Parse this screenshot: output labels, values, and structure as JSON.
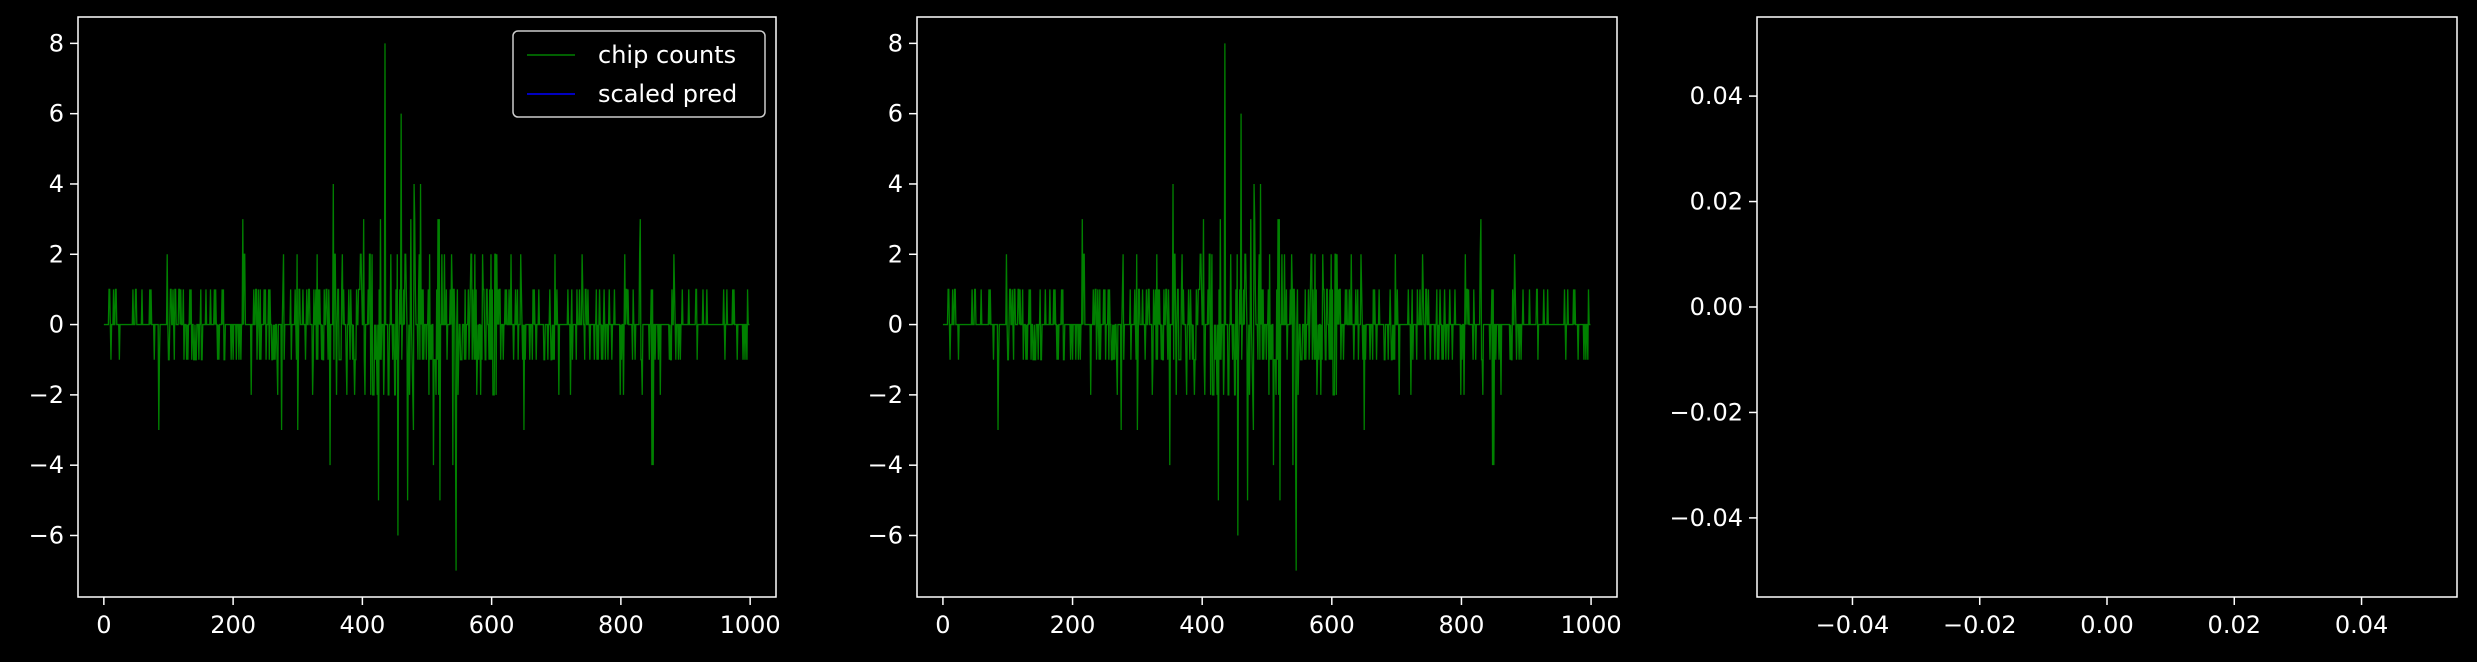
{
  "chart_data": [
    {
      "type": "line",
      "xlim": [
        -40,
        1040
      ],
      "ylim": [
        -7.75,
        8.75
      ],
      "xticks": [
        0,
        200,
        400,
        600,
        800,
        1000
      ],
      "yticks": [
        -6,
        -4,
        -2,
        0,
        2,
        4,
        6,
        8
      ],
      "xtick_labels": [
        "0",
        "200",
        "400",
        "600",
        "800",
        "1000"
      ],
      "ytick_labels": [
        "−6",
        "−4",
        "−2",
        "0",
        "2",
        "4",
        "6",
        "8"
      ],
      "legend": {
        "placement": "top-right",
        "entries": [
          "chip counts",
          "scaled pred"
        ]
      },
      "series": [
        {
          "name": "chip counts",
          "color": "#008000",
          "n": 1000,
          "seed": 7,
          "spikes": [
            [
              435,
              8
            ],
            [
              460,
              6
            ],
            [
              355,
              4
            ],
            [
              480,
              4
            ],
            [
              490,
              4
            ],
            [
              830,
              3
            ],
            [
              215,
              3
            ],
            [
              545,
              -7
            ],
            [
              455,
              -6
            ],
            [
              425,
              -5
            ],
            [
              470,
              -5
            ],
            [
              520,
              -5
            ],
            [
              350,
              -4
            ],
            [
              510,
              -4
            ],
            [
              540,
              -4
            ],
            [
              850,
              -4
            ],
            [
              848,
              -4
            ],
            [
              275,
              -3
            ],
            [
              85,
              -3
            ],
            [
              300,
              -3
            ],
            [
              650,
              -3
            ]
          ]
        },
        {
          "name": "scaled pred",
          "color": "#0000ff",
          "values": []
        }
      ]
    },
    {
      "type": "line",
      "xlim": [
        -40,
        1040
      ],
      "ylim": [
        -7.75,
        8.75
      ],
      "xticks": [
        0,
        200,
        400,
        600,
        800,
        1000
      ],
      "yticks": [
        -6,
        -4,
        -2,
        0,
        2,
        4,
        6,
        8
      ],
      "xtick_labels": [
        "0",
        "200",
        "400",
        "600",
        "800",
        "1000"
      ],
      "ytick_labels": [
        "−6",
        "−4",
        "−2",
        "0",
        "2",
        "4",
        "6",
        "8"
      ],
      "series": [
        {
          "color": "#008000",
          "n": 1000,
          "seed": 7,
          "spikes": [
            [
              435,
              8
            ],
            [
              460,
              6
            ],
            [
              355,
              4
            ],
            [
              480,
              4
            ],
            [
              490,
              4
            ],
            [
              830,
              3
            ],
            [
              215,
              3
            ],
            [
              545,
              -7
            ],
            [
              455,
              -6
            ],
            [
              425,
              -5
            ],
            [
              470,
              -5
            ],
            [
              520,
              -5
            ],
            [
              350,
              -4
            ],
            [
              510,
              -4
            ],
            [
              540,
              -4
            ],
            [
              850,
              -4
            ],
            [
              848,
              -4
            ],
            [
              275,
              -3
            ],
            [
              85,
              -3
            ],
            [
              300,
              -3
            ],
            [
              650,
              -3
            ]
          ]
        }
      ]
    },
    {
      "type": "line",
      "xlim": [
        -0.055,
        0.055
      ],
      "ylim": [
        -0.055,
        0.055
      ],
      "xticks": [
        -0.04,
        -0.02,
        0.0,
        0.02,
        0.04
      ],
      "yticks": [
        -0.04,
        -0.02,
        0.0,
        0.02,
        0.04
      ],
      "xtick_labels": [
        "−0.04",
        "−0.02",
        "0.00",
        "0.02",
        "0.04"
      ],
      "ytick_labels": [
        "−0.04",
        "−0.02",
        "0.00",
        "0.02",
        "0.04"
      ],
      "series": []
    }
  ]
}
